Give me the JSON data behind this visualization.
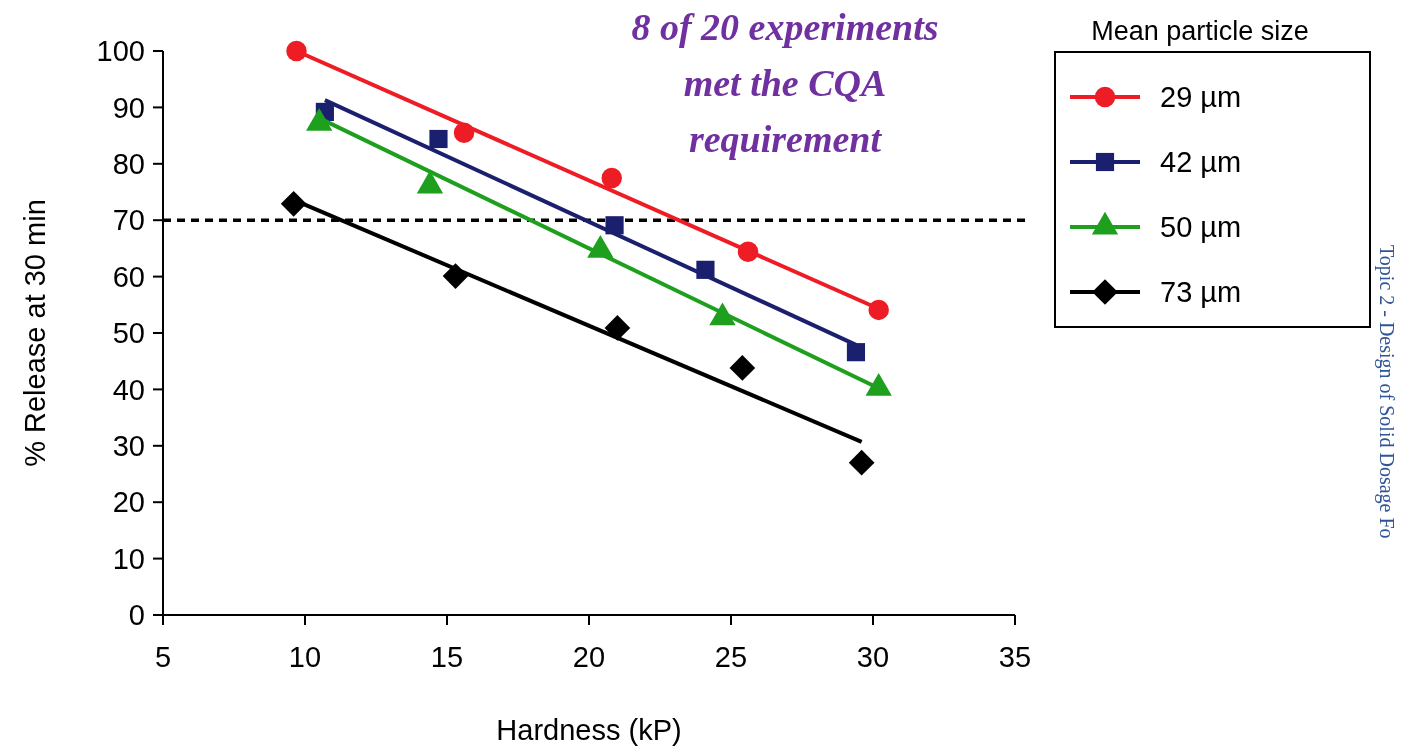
{
  "chart_data": {
    "type": "scatter",
    "xlabel": "Hardness (kP)",
    "ylabel": "% Release at 30 min",
    "legend_title": "Mean particle size",
    "legend": "top right",
    "xlim": [
      5,
      35
    ],
    "xticks": [
      5,
      10,
      15,
      20,
      25,
      30,
      35
    ],
    "ylim": [
      0,
      100
    ],
    "yticks": [
      0,
      10,
      20,
      30,
      40,
      50,
      60,
      70,
      80,
      90,
      100
    ],
    "grid": false,
    "ref_lines": [
      {
        "axis": "y",
        "value": 70,
        "color": "#000000",
        "line_style": "dashed"
      }
    ],
    "annotations": [
      "8 of 20 experiments met the CQA requirement",
      "Topic 2 - Design of Solid Dosage Fo"
    ],
    "series": [
      {
        "name": "29 µm",
        "color": "#ee1c25",
        "marker": "circle",
        "x": [
          9.7,
          15.6,
          20.8,
          25.6,
          30.2
        ],
        "values": [
          100,
          85.5,
          77.5,
          64.4,
          54.1
        ]
      },
      {
        "name": "42 µm",
        "color": "#1a1f6e",
        "marker": "square",
        "x": [
          10.7,
          14.7,
          20.9,
          24.1,
          29.4
        ],
        "values": [
          89.2,
          84.4,
          69.1,
          61.2,
          46.6
        ]
      },
      {
        "name": "50 µm",
        "color": "#1ea01e",
        "marker": "triangle",
        "x": [
          10.5,
          14.4,
          20.4,
          24.7,
          30.2
        ],
        "values": [
          87.2,
          76.1,
          64.7,
          52.7,
          40.2
        ]
      },
      {
        "name": "73 µm",
        "color": "#000000",
        "marker": "diamond",
        "x": [
          9.6,
          15.3,
          21.0,
          25.4,
          29.6
        ],
        "values": [
          72.9,
          60.1,
          50.9,
          43.8,
          27.0
        ]
      },
      {
        "type": "line",
        "color": "#ee1c25",
        "marker": "none",
        "x": [
          9.7,
          30.2
        ],
        "values": [
          100,
          54.3
        ]
      },
      {
        "type": "line",
        "color": "#1a1f6e",
        "marker": "none",
        "x": [
          10.7,
          29.4
        ],
        "values": [
          91.3,
          47.9
        ]
      },
      {
        "type": "line",
        "color": "#1ea01e",
        "marker": "none",
        "x": [
          10.5,
          30.2
        ],
        "values": [
          88.1,
          40.2
        ]
      },
      {
        "type": "line",
        "color": "#000000",
        "marker": "none",
        "x": [
          9.6,
          29.6
        ],
        "values": [
          73.6,
          30.7
        ]
      }
    ]
  }
}
